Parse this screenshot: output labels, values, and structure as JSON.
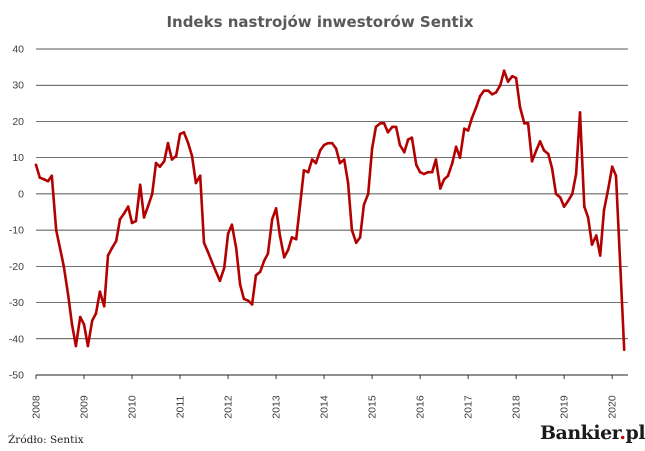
{
  "chart_data": {
    "type": "line",
    "title": "Indeks nastrojów inwestorów Sentix",
    "xlabel": "",
    "ylabel": "",
    "ylim": [
      -50,
      40
    ],
    "y_ticks": [
      "40",
      "30",
      "20",
      "10",
      "0",
      "-10",
      "-20",
      "-30",
      "-40",
      "-50"
    ],
    "x_ticks": [
      "2008",
      "2009",
      "2010",
      "2011",
      "2012",
      "2013",
      "2014",
      "2015",
      "2016",
      "2017",
      "2018",
      "2019",
      "2020"
    ],
    "grid": "horizontal",
    "series_color": "#b30000",
    "x_unit": "year",
    "x": [
      2008.0,
      2008.08,
      2008.17,
      2008.25,
      2008.33,
      2008.42,
      2008.5,
      2008.58,
      2008.67,
      2008.75,
      2008.83,
      2008.92,
      2009.0,
      2009.08,
      2009.17,
      2009.25,
      2009.33,
      2009.42,
      2009.5,
      2009.58,
      2009.67,
      2009.75,
      2009.83,
      2009.92,
      2010.0,
      2010.08,
      2010.17,
      2010.25,
      2010.33,
      2010.42,
      2010.5,
      2010.58,
      2010.67,
      2010.75,
      2010.83,
      2010.92,
      2011.0,
      2011.08,
      2011.17,
      2011.25,
      2011.33,
      2011.42,
      2011.5,
      2011.58,
      2011.67,
      2011.75,
      2011.83,
      2011.92,
      2012.0,
      2012.08,
      2012.17,
      2012.25,
      2012.33,
      2012.42,
      2012.5,
      2012.58,
      2012.67,
      2012.75,
      2012.83,
      2012.92,
      2013.0,
      2013.08,
      2013.17,
      2013.25,
      2013.33,
      2013.42,
      2013.5,
      2013.58,
      2013.67,
      2013.75,
      2013.83,
      2013.92,
      2014.0,
      2014.08,
      2014.17,
      2014.25,
      2014.33,
      2014.42,
      2014.5,
      2014.58,
      2014.67,
      2014.75,
      2014.83,
      2014.92,
      2015.0,
      2015.08,
      2015.17,
      2015.25,
      2015.33,
      2015.42,
      2015.5,
      2015.58,
      2015.67,
      2015.75,
      2015.83,
      2015.92,
      2016.0,
      2016.08,
      2016.17,
      2016.25,
      2016.33,
      2016.42,
      2016.5,
      2016.58,
      2016.67,
      2016.75,
      2016.83,
      2016.92,
      2017.0,
      2017.08,
      2017.17,
      2017.25,
      2017.33,
      2017.42,
      2017.5,
      2017.58,
      2017.67,
      2017.75,
      2017.83,
      2017.92,
      2018.0,
      2018.08,
      2018.17,
      2018.25,
      2018.33,
      2018.42,
      2018.5,
      2018.58,
      2018.67,
      2018.75,
      2018.83,
      2018.92,
      2019.0,
      2019.08,
      2019.17,
      2019.25,
      2019.33,
      2019.42,
      2019.5,
      2019.58,
      2019.67,
      2019.75,
      2019.83,
      2019.92,
      2020.0,
      2020.08,
      2020.17,
      2020.25
    ],
    "values": [
      8,
      4.5,
      4,
      3.5,
      5,
      -10,
      -15,
      -20,
      -28,
      -36,
      -42,
      -34,
      -36,
      -42,
      -35,
      -33,
      -27,
      -31,
      -17,
      -15,
      -13,
      -7,
      -5.5,
      -3.5,
      -8,
      -7.5,
      2.5,
      -6.5,
      -3.5,
      0,
      8.5,
      7.5,
      9,
      14,
      9.5,
      10.5,
      16.5,
      17,
      14,
      10.5,
      3,
      5,
      -13.5,
      -16,
      -19,
      -21.5,
      -24,
      -20.5,
      -11,
      -8.5,
      -15,
      -25,
      -29,
      -29.5,
      -30.5,
      -22.5,
      -21.5,
      -18.5,
      -16.5,
      -7,
      -4,
      -11.5,
      -17.5,
      -15.5,
      -12,
      -12.5,
      -3,
      6.5,
      6,
      9.5,
      8.5,
      12,
      13.5,
      14,
      14,
      12.5,
      8.5,
      9.5,
      3,
      -10,
      -13.5,
      -12,
      -3,
      0,
      12.5,
      18.5,
      19.5,
      19.5,
      17,
      18.5,
      18.5,
      13.5,
      11.5,
      15,
      15.5,
      8,
      6,
      5.5,
      6,
      6,
      9.5,
      1.5,
      4,
      5,
      8.5,
      13,
      10,
      18,
      17.5,
      21,
      24,
      27,
      28.5,
      28.5,
      27.5,
      28,
      30,
      34,
      31,
      32.5,
      32,
      24,
      19.5,
      19.5,
      9,
      12,
      14.5,
      12,
      11,
      7,
      0,
      -1,
      -3.5,
      -2,
      0,
      5.5,
      22.5,
      -3.5,
      -6.5,
      -14,
      -11.5,
      -17,
      -4.5,
      1.5,
      7.5,
      5,
      -20,
      -43
    ]
  },
  "footer": {
    "source": "Źródło: Sentix",
    "brand_main": "Bankier",
    "brand_dot": ".",
    "brand_tld": "pl"
  }
}
